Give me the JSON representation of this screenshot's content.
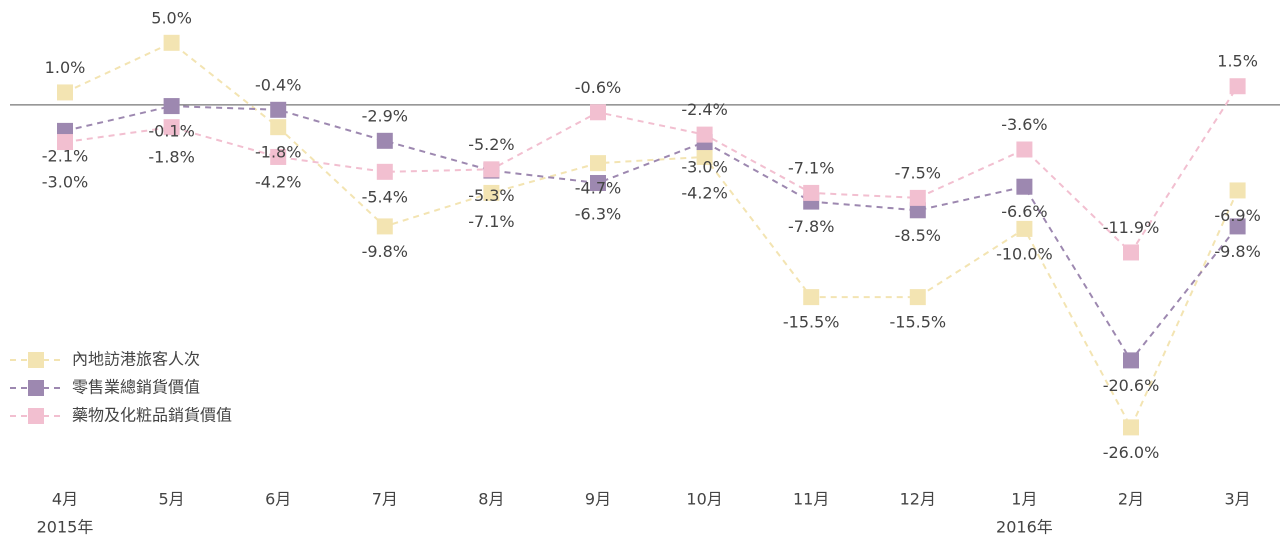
{
  "chart_data": {
    "type": "line",
    "categories": [
      "4月",
      "5月",
      "6月",
      "7月",
      "8月",
      "9月",
      "10月",
      "11月",
      "12月",
      "1月",
      "2月",
      "3月"
    ],
    "year_labels": [
      "2015年",
      null,
      null,
      null,
      null,
      null,
      null,
      null,
      null,
      "2016年",
      null,
      null
    ],
    "ylim": [
      -30,
      7
    ],
    "legend": "left",
    "series": [
      {
        "name": "內地訪港旅客人次",
        "color": "#f3e4b2",
        "values": [
          1.0,
          5.0,
          -1.8,
          -9.8,
          -7.1,
          -4.7,
          -4.2,
          -15.5,
          -15.5,
          -10.0,
          -26.0,
          -6.9
        ],
        "value_labels": [
          "1.0%",
          "5.0%",
          "-1.8%",
          "-9.8%",
          "-7.1%",
          "-4.7%",
          "-4.2%",
          "-15.5%",
          "-15.5%",
          "-10.0%",
          "-26.0%",
          "-6.9%"
        ]
      },
      {
        "name": "零售業總銷貨價值",
        "color": "#9d88b0",
        "values": [
          -2.1,
          -0.1,
          -0.4,
          -2.9,
          -5.3,
          -6.3,
          -3.0,
          -7.8,
          -8.5,
          -6.6,
          -20.6,
          -9.8
        ],
        "value_labels": [
          "-2.1%",
          "-0.1%",
          "-0.4%",
          "-2.9%",
          "-5.3%",
          "-6.3%",
          "-3.0%",
          "-7.8%",
          "-8.5%",
          "-6.6%",
          "-20.6%",
          "-9.8%"
        ]
      },
      {
        "name": "藥物及化粧品銷貨價值",
        "color": "#f2bfd0",
        "values": [
          -3.0,
          -1.8,
          -4.2,
          -5.4,
          -5.2,
          -0.6,
          -2.4,
          -7.1,
          -7.5,
          -3.6,
          -11.9,
          1.5
        ],
        "value_labels": [
          "-3.0%",
          "-1.8%",
          "-4.2%",
          "-5.4%",
          "-5.2%",
          "-0.6%",
          "-2.4%",
          "-7.1%",
          "-7.5%",
          "-3.6%",
          "-11.9%",
          "1.5%"
        ]
      }
    ]
  }
}
